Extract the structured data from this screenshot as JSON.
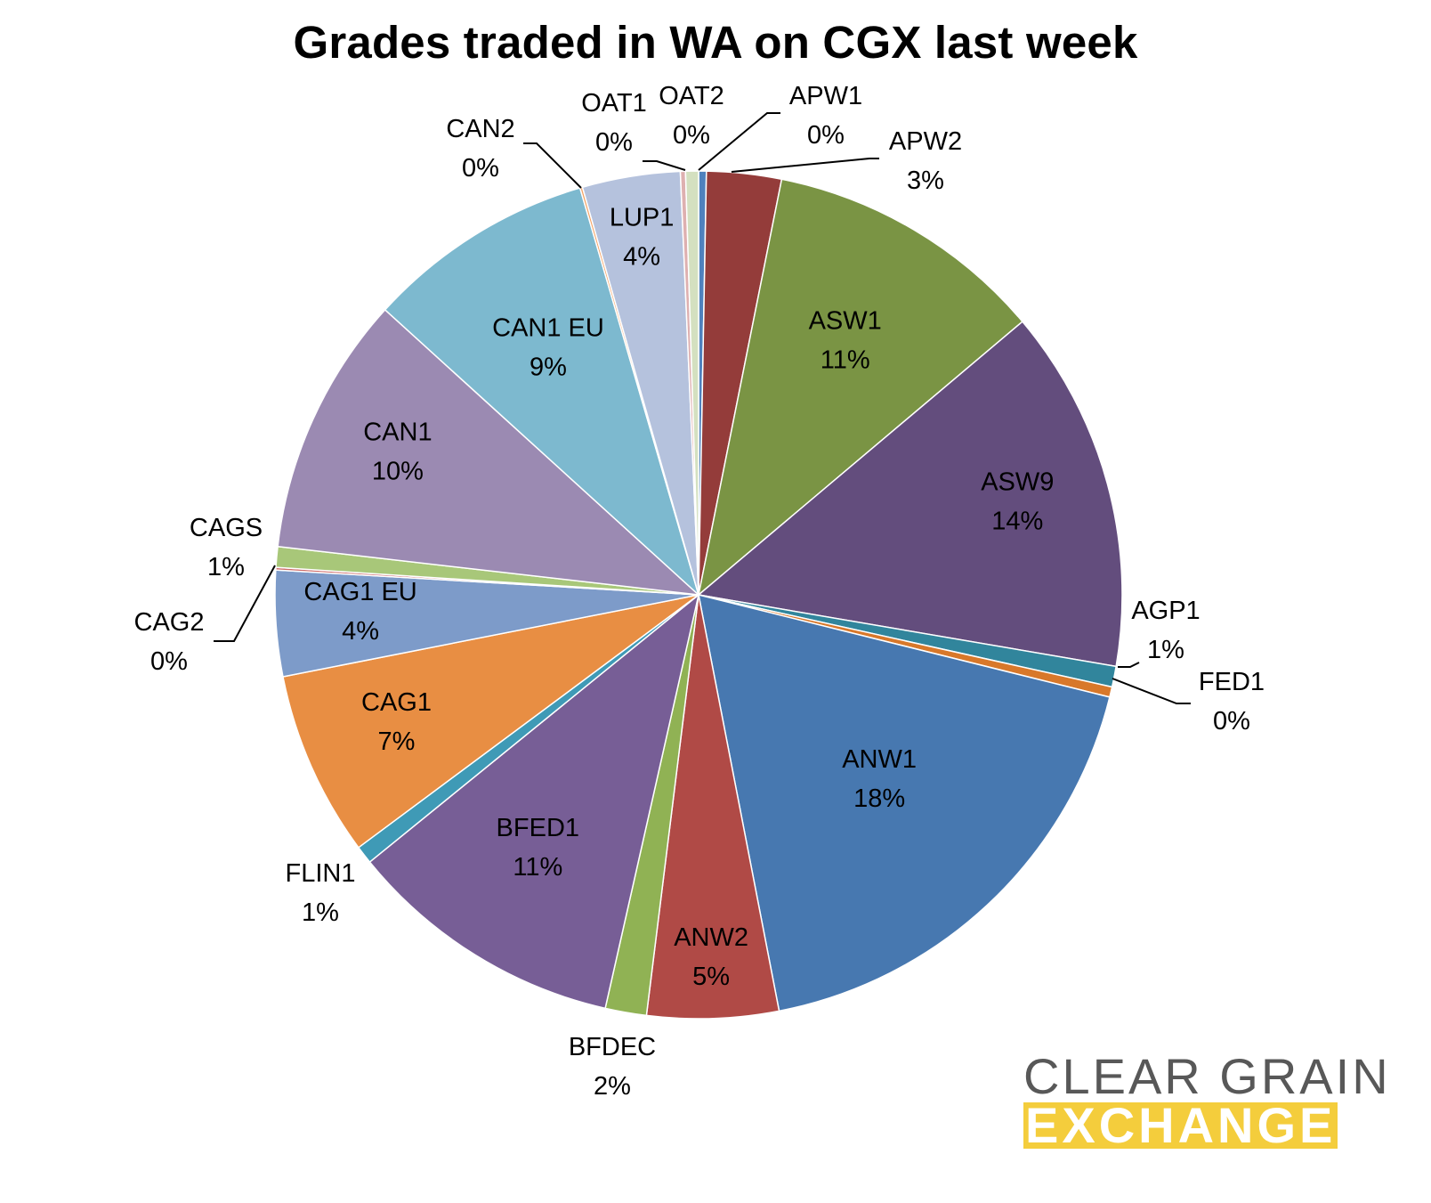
{
  "chart_data": {
    "type": "pie",
    "title": "Grades traded in WA on CGX last week",
    "slices": [
      {
        "label": "APW1",
        "value": 0.3,
        "pct_label": "0%",
        "color": "#4f81bd"
      },
      {
        "label": "APW2",
        "value": 2.9,
        "pct_label": "3%",
        "color": "#943c3a"
      },
      {
        "label": "ASW1",
        "value": 10.9,
        "pct_label": "11%",
        "color": "#7a9444"
      },
      {
        "label": "ASW9",
        "value": 14.1,
        "pct_label": "14%",
        "color": "#634d7d"
      },
      {
        "label": "AGP1",
        "value": 0.8,
        "pct_label": "1%",
        "color": "#31859c"
      },
      {
        "label": "FED1",
        "value": 0.4,
        "pct_label": "0%",
        "color": "#d8782a"
      },
      {
        "label": "ANW1",
        "value": 18.4,
        "pct_label": "18%",
        "color": "#4778b0"
      },
      {
        "label": "ANW2",
        "value": 5.1,
        "pct_label": "5%",
        "color": "#b04a46"
      },
      {
        "label": "BFDEC",
        "value": 1.6,
        "pct_label": "2%",
        "color": "#90b254"
      },
      {
        "label": "BFED1",
        "value": 10.8,
        "pct_label": "11%",
        "color": "#775e96"
      },
      {
        "label": "FLIN1",
        "value": 0.7,
        "pct_label": "1%",
        "color": "#3f9ab6"
      },
      {
        "label": "CAG1",
        "value": 7.2,
        "pct_label": "7%",
        "color": "#e88e43"
      },
      {
        "label": "CAG1 EU",
        "value": 4.1,
        "pct_label": "4%",
        "color": "#7d9bc9"
      },
      {
        "label": "CAG2",
        "value": 0.1,
        "pct_label": "0%",
        "color": "#cd6c6a"
      },
      {
        "label": "CAGS",
        "value": 0.8,
        "pct_label": "1%",
        "color": "#a8c779"
      },
      {
        "label": "CAN1",
        "value": 10.1,
        "pct_label": "10%",
        "color": "#9b8ab2"
      },
      {
        "label": "CAN1 EU",
        "value": 8.9,
        "pct_label": "9%",
        "color": "#7db9cf"
      },
      {
        "label": "CAN2",
        "value": 0.1,
        "pct_label": "0%",
        "color": "#f3a468"
      },
      {
        "label": "LUP1",
        "value": 3.8,
        "pct_label": "4%",
        "color": "#b5c2dd"
      },
      {
        "label": "OAT1",
        "value": 0.2,
        "pct_label": "0%",
        "color": "#deb0b0"
      },
      {
        "label": "OAT2",
        "value": 0.5,
        "pct_label": "0%",
        "color": "#d4e0c0"
      }
    ]
  },
  "logo": {
    "line1": "CLEAR GRAIN",
    "line2": "EXCHANGE",
    "colors": {
      "line1": "#585858",
      "line2_bg": "#f4cd3c",
      "line2_text": "#ffffff"
    }
  }
}
